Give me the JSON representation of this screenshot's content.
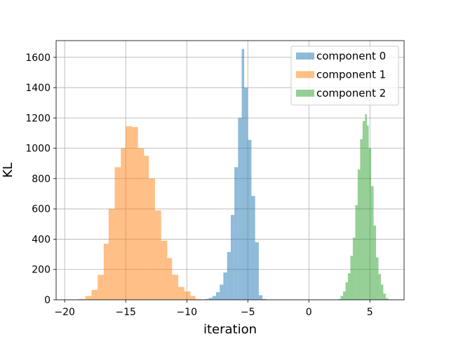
{
  "chart_data": {
    "type": "bar",
    "title": "",
    "xlabel": "iteration",
    "ylabel": "KL",
    "xlim": [
      -20.7,
      7.8
    ],
    "ylim": [
      0,
      1710
    ],
    "grid": true,
    "legend_position": "top-right",
    "xticks": [
      -20,
      -15,
      -10,
      -5,
      0,
      5
    ],
    "yticks": [
      0,
      200,
      400,
      600,
      800,
      1000,
      1200,
      1400,
      1600
    ],
    "series": [
      {
        "name": "component 0",
        "color": "#1f77b4",
        "opacity": 0.5,
        "bins": [
          {
            "x0": -8.8,
            "x1": -8.5,
            "y": 2
          },
          {
            "x0": -8.5,
            "x1": -8.2,
            "y": 5
          },
          {
            "x0": -8.2,
            "x1": -7.9,
            "y": 12
          },
          {
            "x0": -7.9,
            "x1": -7.6,
            "y": 25
          },
          {
            "x0": -7.6,
            "x1": -7.3,
            "y": 50
          },
          {
            "x0": -7.3,
            "x1": -7.0,
            "y": 100
          },
          {
            "x0": -7.0,
            "x1": -6.7,
            "y": 180
          },
          {
            "x0": -6.7,
            "x1": -6.4,
            "y": 315
          },
          {
            "x0": -6.4,
            "x1": -6.1,
            "y": 560
          },
          {
            "x0": -6.1,
            "x1": -5.8,
            "y": 875
          },
          {
            "x0": -5.8,
            "x1": -5.5,
            "y": 1200
          },
          {
            "x0": -5.5,
            "x1": -5.3,
            "y": 1655
          },
          {
            "x0": -5.3,
            "x1": -5.0,
            "y": 1400
          },
          {
            "x0": -5.0,
            "x1": -4.7,
            "y": 1055
          },
          {
            "x0": -4.7,
            "x1": -4.4,
            "y": 685
          },
          {
            "x0": -4.4,
            "x1": -4.1,
            "y": 380
          },
          {
            "x0": -4.1,
            "x1": -3.8,
            "y": 30
          },
          {
            "x0": -3.8,
            "x1": -3.5,
            "y": 5
          }
        ]
      },
      {
        "name": "component 1",
        "color": "#ff7f0e",
        "opacity": 0.5,
        "bins": [
          {
            "x0": -19.5,
            "x1": -18.9,
            "y": 1
          },
          {
            "x0": -18.9,
            "x1": -18.3,
            "y": 5
          },
          {
            "x0": -18.3,
            "x1": -17.8,
            "y": 25
          },
          {
            "x0": -17.8,
            "x1": -17.3,
            "y": 65
          },
          {
            "x0": -17.3,
            "x1": -16.8,
            "y": 165
          },
          {
            "x0": -16.8,
            "x1": -16.4,
            "y": 370
          },
          {
            "x0": -16.4,
            "x1": -15.9,
            "y": 600
          },
          {
            "x0": -15.9,
            "x1": -15.4,
            "y": 875
          },
          {
            "x0": -15.4,
            "x1": -15.0,
            "y": 1000
          },
          {
            "x0": -15.0,
            "x1": -14.5,
            "y": 1145
          },
          {
            "x0": -14.5,
            "x1": -14.0,
            "y": 1140
          },
          {
            "x0": -14.0,
            "x1": -13.5,
            "y": 1000
          },
          {
            "x0": -13.5,
            "x1": -13.1,
            "y": 950
          },
          {
            "x0": -13.1,
            "x1": -12.6,
            "y": 800
          },
          {
            "x0": -12.6,
            "x1": -12.1,
            "y": 590
          },
          {
            "x0": -12.1,
            "x1": -11.6,
            "y": 390
          },
          {
            "x0": -11.6,
            "x1": -11.2,
            "y": 275
          },
          {
            "x0": -11.2,
            "x1": -10.7,
            "y": 165
          },
          {
            "x0": -10.7,
            "x1": -10.2,
            "y": 85
          },
          {
            "x0": -10.2,
            "x1": -9.7,
            "y": 55
          },
          {
            "x0": -9.7,
            "x1": -9.3,
            "y": 25
          },
          {
            "x0": -9.3,
            "x1": -8.8,
            "y": 5
          },
          {
            "x0": -8.8,
            "x1": -8.3,
            "y": 2
          }
        ]
      },
      {
        "name": "component 2",
        "color": "#2ca02c",
        "opacity": 0.5,
        "bins": [
          {
            "x0": 2.4,
            "x1": 2.6,
            "y": 5
          },
          {
            "x0": 2.6,
            "x1": 2.8,
            "y": 25
          },
          {
            "x0": 2.8,
            "x1": 3.0,
            "y": 55
          },
          {
            "x0": 3.0,
            "x1": 3.2,
            "y": 115
          },
          {
            "x0": 3.2,
            "x1": 3.4,
            "y": 175
          },
          {
            "x0": 3.4,
            "x1": 3.6,
            "y": 290
          },
          {
            "x0": 3.6,
            "x1": 3.8,
            "y": 410
          },
          {
            "x0": 3.8,
            "x1": 4.0,
            "y": 625
          },
          {
            "x0": 4.0,
            "x1": 4.2,
            "y": 860
          },
          {
            "x0": 4.2,
            "x1": 4.4,
            "y": 1060
          },
          {
            "x0": 4.4,
            "x1": 4.6,
            "y": 1180
          },
          {
            "x0": 4.6,
            "x1": 4.75,
            "y": 1225
          },
          {
            "x0": 4.75,
            "x1": 4.9,
            "y": 1150
          },
          {
            "x0": 4.9,
            "x1": 5.1,
            "y": 1000
          },
          {
            "x0": 5.1,
            "x1": 5.3,
            "y": 750
          },
          {
            "x0": 5.3,
            "x1": 5.5,
            "y": 490
          },
          {
            "x0": 5.5,
            "x1": 5.7,
            "y": 280
          },
          {
            "x0": 5.7,
            "x1": 5.9,
            "y": 170
          },
          {
            "x0": 5.9,
            "x1": 6.1,
            "y": 100
          },
          {
            "x0": 6.1,
            "x1": 6.3,
            "y": 40
          },
          {
            "x0": 6.3,
            "x1": 6.5,
            "y": 10
          },
          {
            "x0": 6.5,
            "x1": 6.7,
            "y": 3
          }
        ]
      }
    ]
  }
}
